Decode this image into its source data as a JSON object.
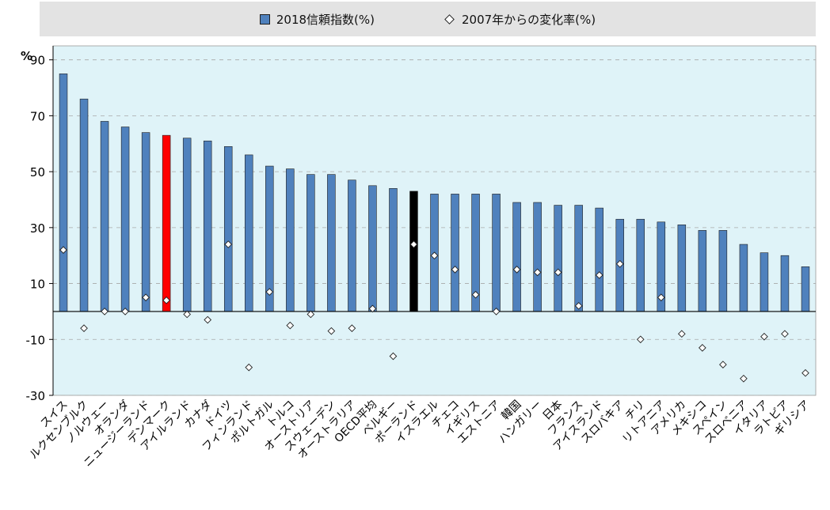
{
  "chart_data": {
    "type": "bar",
    "legend_placement": "top",
    "yunit": "%",
    "ylim": [
      -30,
      95
    ],
    "yticks": [
      90,
      70,
      50,
      30,
      10,
      -10,
      -30
    ],
    "grid": true,
    "colors": {
      "bar": "#4f81bd",
      "highlight_red": "#ff0000",
      "highlight_black": "#000000",
      "plot_bg": "#dff3f8"
    },
    "categories": [
      "スイス",
      "ルクセンブルク",
      "ノルウェー",
      "オランダ",
      "ニュージーランド",
      "デンマーク",
      "アイルランド",
      "カナダ",
      "ドイツ",
      "フィンランド",
      "ポルトガル",
      "トルコ",
      "オーストリア",
      "スウェーデン",
      "オーストラリア",
      "OECD平均",
      "ベルギー",
      "ポーランド",
      "イスラエル",
      "チェコ",
      "イギリス",
      "エストニア",
      "韓国",
      "ハンガリー",
      "日本",
      "フランス",
      "アイスランド",
      "スロバキア",
      "チリ",
      "リトアニア",
      "アメリカ",
      "メキシコ",
      "スペイン",
      "スロベニア",
      "イタリア",
      "ラトビア",
      "ギリシア"
    ],
    "highlight": {
      "デンマーク": "red",
      "ポーランド": "black"
    },
    "series": [
      {
        "name": "2018信頼指数(%)",
        "type": "bar",
        "values": [
          85,
          76,
          68,
          66,
          64,
          63,
          62,
          61,
          59,
          56,
          52,
          51,
          49,
          49,
          47,
          45,
          44,
          43,
          42,
          42,
          42,
          42,
          39,
          39,
          38,
          38,
          37,
          33,
          33,
          32,
          31,
          29,
          29,
          24,
          21,
          20,
          16
        ]
      },
      {
        "name": "2007年からの変化率(%)",
        "type": "scatter",
        "marker": "diamond",
        "values": [
          22,
          -6,
          0,
          0,
          5,
          4,
          -1,
          -3,
          24,
          -20,
          7,
          -5,
          -1,
          -7,
          -6,
          1,
          -16,
          24,
          20,
          15,
          6,
          0,
          15,
          14,
          14,
          2,
          13,
          17,
          -10,
          5,
          -8,
          -13,
          -19,
          -24,
          -9,
          -8,
          -22
        ]
      }
    ]
  }
}
